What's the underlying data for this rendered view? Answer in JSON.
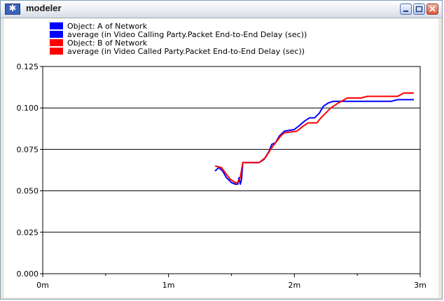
{
  "window": {
    "title": "modeler",
    "app_icon": "asterisk-icon",
    "controls": [
      "minimize-icon",
      "maximize-icon",
      "close-icon"
    ]
  },
  "chart_data": {
    "type": "line",
    "title": "",
    "xlabel": "",
    "ylabel": "",
    "xlim": [
      0,
      3
    ],
    "ylim": [
      0,
      0.125
    ],
    "x_ticks": [
      {
        "value": 0,
        "label": "0m"
      },
      {
        "value": 1,
        "label": "1m"
      },
      {
        "value": 2,
        "label": "2m"
      },
      {
        "value": 3,
        "label": "3m"
      }
    ],
    "x_minor_ticks": [
      0.5,
      1.5,
      2.5
    ],
    "y_ticks": [
      {
        "value": 0,
        "label": "0.000"
      },
      {
        "value": 0.025,
        "label": "0.025"
      },
      {
        "value": 0.05,
        "label": "0.050"
      },
      {
        "value": 0.075,
        "label": "0.075"
      },
      {
        "value": 0.1,
        "label": "0.100"
      },
      {
        "value": 0.125,
        "label": "0.125"
      }
    ],
    "grid": "horizontal",
    "legend_position": "top-left",
    "legend": [
      {
        "lines": [
          "Object: A of Network",
          "average (in Video Calling Party.Packet End-to-End Delay (sec))"
        ],
        "color": "#0000ff"
      },
      {
        "lines": [
          "Object: B of Network",
          "average (in Video Called Party.Packet End-to-End Delay (sec))"
        ],
        "color": "#ff0000"
      }
    ],
    "series": [
      {
        "color": "#0000ff",
        "points": [
          [
            1.37,
            0.062
          ],
          [
            1.4,
            0.064
          ],
          [
            1.43,
            0.062
          ],
          [
            1.46,
            0.058
          ],
          [
            1.5,
            0.055
          ],
          [
            1.53,
            0.054
          ],
          [
            1.55,
            0.054
          ],
          [
            1.56,
            0.058
          ],
          [
            1.57,
            0.054
          ],
          [
            1.58,
            0.057
          ],
          [
            1.59,
            0.067
          ],
          [
            1.65,
            0.067
          ],
          [
            1.72,
            0.067
          ],
          [
            1.76,
            0.069
          ],
          [
            1.8,
            0.074
          ],
          [
            1.82,
            0.078
          ],
          [
            1.85,
            0.079
          ],
          [
            1.88,
            0.083
          ],
          [
            1.92,
            0.086
          ],
          [
            2.0,
            0.087
          ],
          [
            2.05,
            0.09
          ],
          [
            2.08,
            0.092
          ],
          [
            2.12,
            0.094
          ],
          [
            2.16,
            0.094
          ],
          [
            2.2,
            0.097
          ],
          [
            2.23,
            0.101
          ],
          [
            2.27,
            0.103
          ],
          [
            2.31,
            0.104
          ],
          [
            2.38,
            0.104
          ],
          [
            2.55,
            0.104
          ],
          [
            2.77,
            0.104
          ],
          [
            2.82,
            0.105
          ],
          [
            2.95,
            0.105
          ]
        ]
      },
      {
        "color": "#ff0000",
        "points": [
          [
            1.37,
            0.065
          ],
          [
            1.42,
            0.064
          ],
          [
            1.45,
            0.061
          ],
          [
            1.49,
            0.057
          ],
          [
            1.53,
            0.055
          ],
          [
            1.55,
            0.055
          ],
          [
            1.57,
            0.058
          ],
          [
            1.59,
            0.067
          ],
          [
            1.66,
            0.067
          ],
          [
            1.72,
            0.067
          ],
          [
            1.77,
            0.07
          ],
          [
            1.82,
            0.076
          ],
          [
            1.86,
            0.08
          ],
          [
            1.89,
            0.083
          ],
          [
            1.92,
            0.085
          ],
          [
            2.02,
            0.086
          ],
          [
            2.07,
            0.089
          ],
          [
            2.11,
            0.091
          ],
          [
            2.18,
            0.091
          ],
          [
            2.21,
            0.094
          ],
          [
            2.25,
            0.097
          ],
          [
            2.29,
            0.1
          ],
          [
            2.35,
            0.103
          ],
          [
            2.42,
            0.106
          ],
          [
            2.53,
            0.106
          ],
          [
            2.58,
            0.107
          ],
          [
            2.7,
            0.107
          ],
          [
            2.82,
            0.107
          ],
          [
            2.87,
            0.109
          ],
          [
            2.95,
            0.109
          ]
        ]
      }
    ]
  }
}
